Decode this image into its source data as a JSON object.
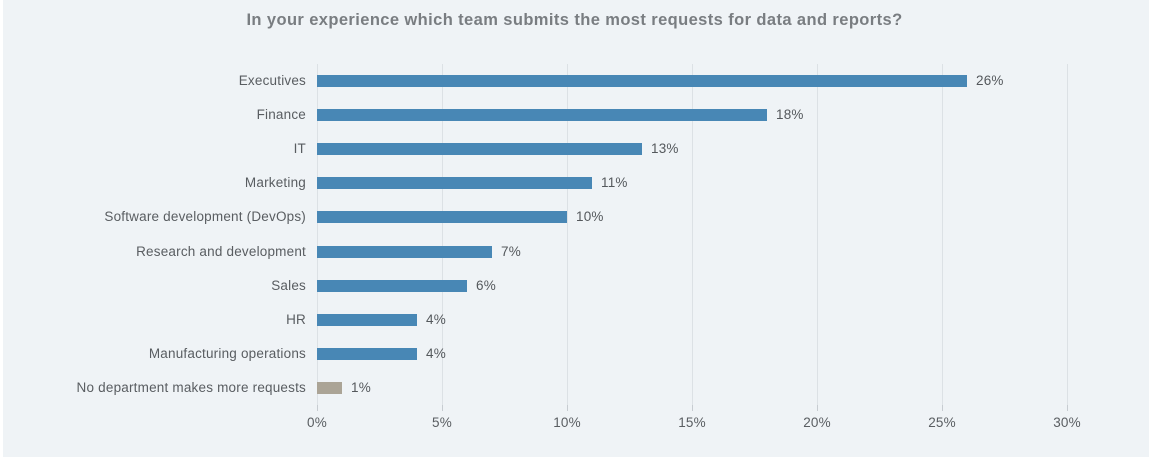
{
  "title": "In your experience which team submits the most requests for data and reports?",
  "chart_data": {
    "type": "bar",
    "orientation": "horizontal",
    "title": "In your experience which team submits the most requests for data and reports?",
    "categories": [
      "Executives",
      "Finance",
      "IT",
      "Marketing",
      "Software development (DevOps)",
      "Research and development",
      "Sales",
      "HR",
      "Manufacturing operations",
      "No department makes more requests"
    ],
    "values": [
      26,
      18,
      13,
      11,
      10,
      7,
      6,
      4,
      4,
      1
    ],
    "value_labels": [
      "26%",
      "18%",
      "13%",
      "11%",
      "10%",
      "7%",
      "6%",
      "4%",
      "4%",
      "1%"
    ],
    "bar_colors": [
      "#4887b5",
      "#4887b5",
      "#4887b5",
      "#4887b5",
      "#4887b5",
      "#4887b5",
      "#4887b5",
      "#4887b5",
      "#4887b5",
      "#aba496"
    ],
    "xlabel": "",
    "ylabel": "",
    "x_tick_labels": [
      "0%",
      "5%",
      "10%",
      "15%",
      "20%",
      "25%",
      "30%"
    ],
    "x_tick_values": [
      0,
      5,
      10,
      15,
      20,
      25,
      30
    ],
    "xlim": [
      0,
      31
    ],
    "grid": "vertical",
    "legend": "none",
    "colors": {
      "bar_default": "#4887b5",
      "bar_highlight": "#aba496",
      "background": "#eff3f6",
      "gridline": "#dce1e5",
      "title_text": "#797d81",
      "label_text": "#595d61",
      "value_text": "#54585c"
    }
  }
}
